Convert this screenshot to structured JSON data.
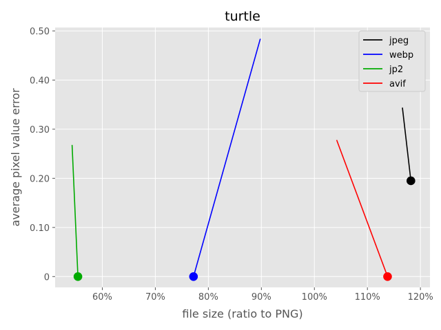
{
  "chart_data": {
    "type": "line",
    "title": "turtle",
    "xlabel": "file size (ratio to PNG)",
    "ylabel": "average pixel value error",
    "xlim": [
      51.1,
      121.8
    ],
    "ylim": [
      -0.022,
      0.507
    ],
    "x_ticks": [
      60,
      70,
      80,
      90,
      100,
      110,
      120
    ],
    "x_tick_labels": [
      "60%",
      "70%",
      "80%",
      "90%",
      "100%",
      "110%",
      "120%"
    ],
    "y_ticks": [
      0,
      0.1,
      0.2,
      0.3,
      0.4,
      0.5
    ],
    "y_tick_labels": [
      "0",
      "0.10",
      "0.20",
      "0.30",
      "0.40",
      "0.50"
    ],
    "grid": true,
    "legend_position": "top-right",
    "series": [
      {
        "name": "jpeg",
        "color": "#000000",
        "x": [
          116.6,
          118.2
        ],
        "y": [
          0.344,
          0.195
        ],
        "marker_at": "end"
      },
      {
        "name": "webp",
        "color": "#0000ff",
        "x": [
          89.8,
          77.2
        ],
        "y": [
          0.484,
          0.0
        ],
        "marker_at": "end"
      },
      {
        "name": "jp2",
        "color": "#00aa00",
        "x": [
          54.3,
          55.4
        ],
        "y": [
          0.268,
          0.0
        ],
        "marker_at": "end"
      },
      {
        "name": "avif",
        "color": "#ff0000",
        "x": [
          104.2,
          113.8
        ],
        "y": [
          0.278,
          0.0
        ],
        "marker_at": "end"
      }
    ]
  }
}
